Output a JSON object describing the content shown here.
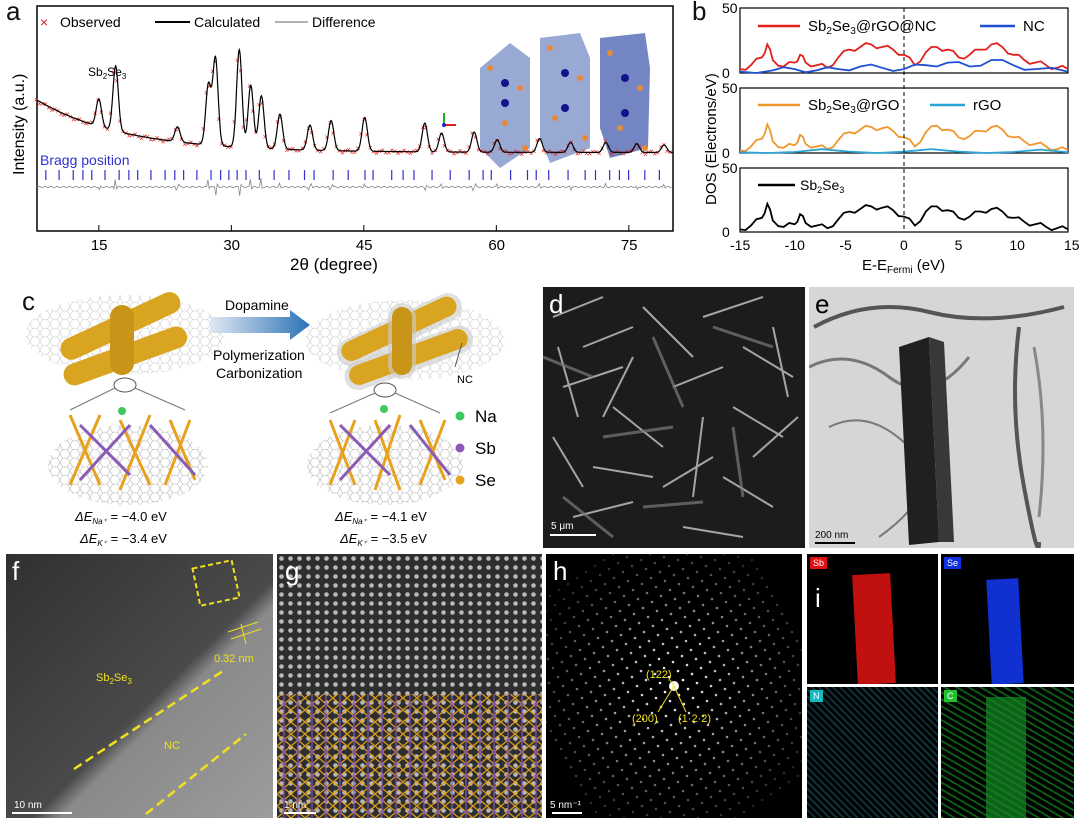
{
  "panels": {
    "a": "a",
    "b": "b",
    "c": "c",
    "d": "d",
    "e": "e",
    "f": "f",
    "g": "g",
    "h": "h",
    "i": "i"
  },
  "panel_a": {
    "legend": {
      "observed": "Observed",
      "calculated": "Calculated",
      "difference": "Difference"
    },
    "ylabel": "Intensity (a.u.)",
    "xlabel": "2θ (degree)",
    "bragg_label": "Bragg position",
    "phase_label": "Sb",
    "phase_sub1": "2",
    "phase_mid": "Se",
    "phase_sub2": "3",
    "x_ticks": [
      "15",
      "30",
      "45",
      "60",
      "75"
    ],
    "colors": {
      "observed": "#e0201c",
      "calculated": "#000000",
      "difference": "#888888",
      "bragg": "#3030d0"
    }
  },
  "chart_data": [
    {
      "type": "line",
      "title": "",
      "xlabel": "2θ (degree)",
      "ylabel": "Intensity (a.u.)",
      "xlim": [
        8,
        80
      ],
      "series": [
        {
          "name": "Observed",
          "peaks_x": [
            15.0,
            16.9,
            23.9,
            27.4,
            28.2,
            30.9,
            32.2,
            33.4,
            35.5,
            38.9,
            41.3,
            45.1,
            51.9,
            53.8,
            57.5,
            60.1,
            64.9,
            68.4,
            72.4,
            75.9,
            79.0
          ],
          "peaks_y": [
            22,
            52,
            12,
            48,
            70,
            78,
            50,
            42,
            28,
            20,
            24,
            27,
            23,
            15,
            16,
            10,
            11,
            8,
            8,
            7,
            6
          ]
        }
      ],
      "colors": {
        "observed": "#e0201c",
        "calculated": "#000000"
      }
    },
    {
      "type": "line",
      "xlabel": "E-EFermi (eV)",
      "ylabel": "DOS (Electrons/eV)",
      "xlim": [
        -15,
        15
      ],
      "x_ticks": [
        -15,
        -10,
        -5,
        0,
        5,
        10,
        15
      ],
      "subplots": [
        {
          "ylim": [
            0,
            50
          ],
          "series": [
            {
              "name": "Sb2Se3@rGO@NC",
              "color": "#e0201c",
              "x": [
                -15,
                -14,
                -13,
                -12.5,
                -12,
                -11,
                -10,
                -9.5,
                -9,
                -8,
                -7,
                -6,
                -5,
                -4,
                -3,
                -2,
                -1,
                0,
                1,
                2,
                3,
                4,
                5,
                6,
                7,
                8,
                9,
                10,
                11,
                12,
                13,
                14,
                15
              ],
              "y": [
                3,
                6,
                12,
                22,
                10,
                5,
                8,
                14,
                8,
                6,
                4,
                12,
                18,
                20,
                22,
                20,
                18,
                14,
                6,
                16,
                20,
                18,
                12,
                14,
                18,
                22,
                20,
                14,
                10,
                8,
                6,
                4,
                3
              ]
            },
            {
              "name": "NC",
              "color": "#1f4fd0",
              "x": [
                -15,
                -12,
                -10,
                -8,
                -6,
                -4,
                -2,
                0,
                2,
                4,
                6,
                8,
                10,
                12,
                15
              ],
              "y": [
                1,
                2,
                3,
                2,
                3,
                5,
                4,
                3,
                6,
                8,
                5,
                10,
                6,
                3,
                1
              ]
            }
          ]
        },
        {
          "ylim": [
            0,
            50
          ],
          "series": [
            {
              "name": "Sb2Se3@rGO",
              "color": "#f0962c",
              "x": [
                -15,
                -14,
                -13,
                -12.5,
                -12,
                -11,
                -10,
                -9.5,
                -9,
                -8,
                -7,
                -6,
                -5,
                -4,
                -3,
                -2,
                -1,
                0,
                1,
                2,
                3,
                4,
                5,
                6,
                7,
                8,
                9,
                10,
                11,
                12,
                13,
                14,
                15
              ],
              "y": [
                2,
                5,
                11,
                22,
                9,
                4,
                6,
                14,
                7,
                5,
                3,
                10,
                16,
                18,
                20,
                19,
                17,
                12,
                5,
                16,
                21,
                18,
                12,
                13,
                17,
                20,
                18,
                12,
                9,
                7,
                5,
                3,
                2
              ]
            },
            {
              "name": "rGO",
              "color": "#2aa3d6",
              "x": [
                -15,
                -10,
                -5,
                0,
                5,
                10,
                15
              ],
              "y": [
                0.5,
                0.8,
                1,
                1,
                1,
                0.8,
                0.5
              ]
            }
          ]
        },
        {
          "ylim": [
            0,
            50
          ],
          "series": [
            {
              "name": "Sb2Se3",
              "color": "#000000",
              "x": [
                -15,
                -14,
                -13,
                -12.5,
                -12,
                -11,
                -10,
                -9.5,
                -9,
                -8,
                -7,
                -6,
                -5,
                -4,
                -3,
                -2,
                -1,
                0,
                1,
                2,
                3,
                4,
                5,
                6,
                7,
                8,
                9,
                10,
                11,
                12,
                13,
                14,
                15
              ],
              "y": [
                2,
                5,
                11,
                22,
                9,
                4,
                6,
                14,
                7,
                5,
                3,
                10,
                16,
                18,
                20,
                19,
                17,
                12,
                5,
                16,
                20,
                17,
                11,
                12,
                16,
                18,
                16,
                11,
                8,
                6,
                4,
                3,
                2
              ]
            }
          ]
        }
      ]
    }
  ],
  "panel_b": {
    "ylabel": "DOS (Electrons/eV)",
    "xlabel_pre": "E-E",
    "xlabel_sub": "Fermi",
    "xlabel_post": " (eV)",
    "x_ticks": [
      "-15",
      "-10",
      "-5",
      "0",
      "5",
      "10",
      "15"
    ],
    "y_ticks": [
      "0",
      "50"
    ],
    "legends": {
      "s1a_pre": "Sb",
      "s1a_s1": "2",
      "s1a_mid": "Se",
      "s1a_s2": "3",
      "s1a_post": "@rGO@NC",
      "s1b": "NC",
      "s2a_pre": "Sb",
      "s2a_s1": "2",
      "s2a_mid": "Se",
      "s2a_s2": "3",
      "s2a_post": "@rGO",
      "s2b": "rGO",
      "s3_pre": "Sb",
      "s3_s1": "2",
      "s3_mid": "Se",
      "s3_s2": "3"
    }
  },
  "panel_c": {
    "arrow_top": "Dopamine",
    "arrow_bot1": "Polymerization",
    "arrow_bot2": "Carbonization",
    "nc_label": "NC",
    "legend": {
      "na": "Na",
      "sb": "Sb",
      "se": "Se"
    },
    "left_e1": "ΔE",
    "left_e1_sub": "Na⁺",
    "left_e1_val": " = −4.0 eV",
    "left_e2": "ΔE",
    "left_e2_sub": "K⁺",
    "left_e2_val": " = −3.4 eV",
    "right_e1_val": " = −4.1 eV",
    "right_e2_val": " = −3.5 eV",
    "colors": {
      "na": "#3fc95a",
      "sb": "#8a5bb5",
      "se": "#e7a21d",
      "rod": "#d9a41f"
    }
  },
  "panel_d": {
    "scale": "5 μm"
  },
  "panel_e": {
    "scale": "200 nm"
  },
  "panel_f": {
    "scale": "10 nm",
    "spacing": "0.32 nm",
    "label_sb_pre": "Sb",
    "label_sb_s1": "2",
    "label_sb_mid": "Se",
    "label_sb_s2": "3",
    "label_nc": "NC"
  },
  "panel_g": {
    "scale": "1 nm"
  },
  "panel_h": {
    "scale": "5 nm⁻¹",
    "idx1": "(122)",
    "idx2": "(200)",
    "idx3": "(1·2·2)"
  },
  "panel_i": {
    "sb": "Sb",
    "se": "Se",
    "n": "N",
    "c": "C",
    "colors": {
      "sb": "#e01010",
      "se": "#1030e0",
      "n": "#18b8c0",
      "c": "#20c030"
    }
  }
}
